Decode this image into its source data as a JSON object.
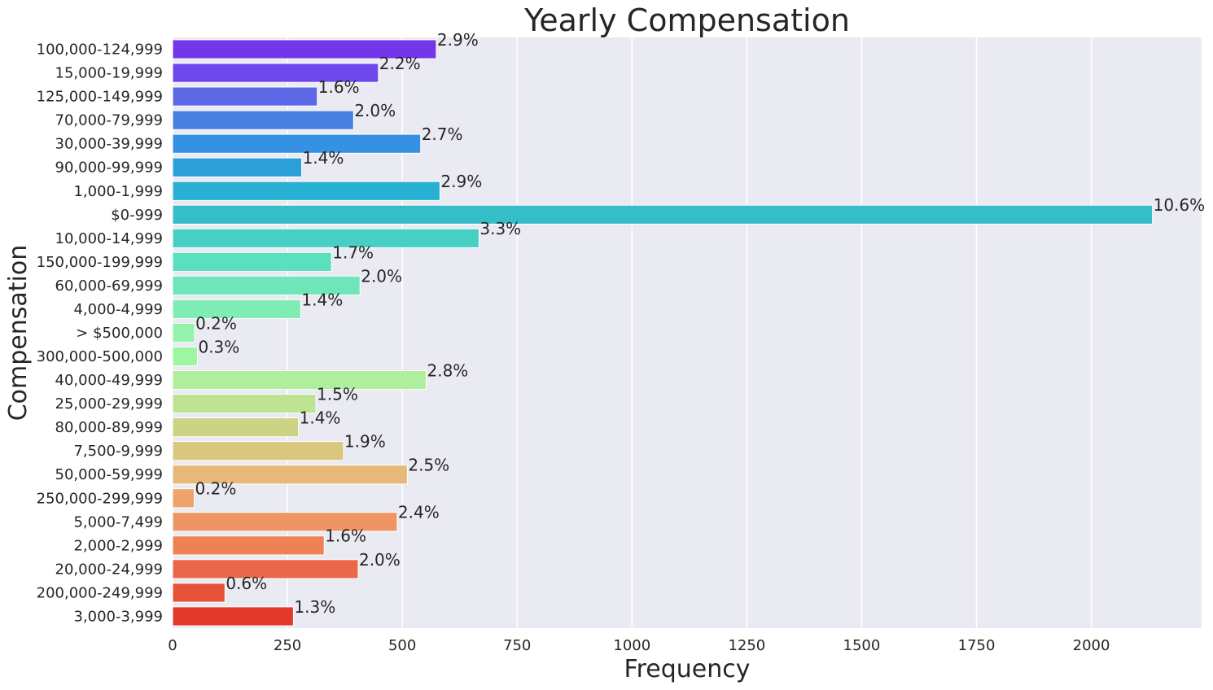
{
  "chart_data": {
    "type": "bar",
    "orientation": "horizontal",
    "title": "Yearly Compensation",
    "xlabel": "Frequency",
    "ylabel": "Compensation",
    "xlim": [
      0,
      2240
    ],
    "xticks": [
      0,
      250,
      500,
      750,
      1000,
      1250,
      1500,
      1750,
      2000
    ],
    "grid": true,
    "categories": [
      "100,000-124,999",
      "15,000-19,999",
      "125,000-149,999",
      "70,000-79,999",
      "30,000-39,999",
      "90,000-99,999",
      "1,000-1,999",
      "$0-999",
      "10,000-14,999",
      "150,000-199,999",
      "60,000-69,999",
      "4,000-4,999",
      "> $500,000",
      "300,000-500,000",
      "40,000-49,999",
      "25,000-29,999",
      "80,000-89,999",
      "7,500-9,999",
      "50,000-59,999",
      "250,000-299,999",
      "5,000-7,499",
      "2,000-2,999",
      "20,000-24,999",
      "200,000-249,999",
      "3,000-3,999"
    ],
    "values": [
      574,
      448,
      315,
      394,
      540,
      281,
      582,
      2133,
      667,
      346,
      408,
      279,
      48,
      54,
      552,
      312,
      274,
      372,
      511,
      47,
      489,
      330,
      404,
      114,
      263
    ],
    "labels": [
      "2.9%",
      "2.2%",
      "1.6%",
      "2.0%",
      "2.7%",
      "1.4%",
      "2.9%",
      "10.6%",
      "3.3%",
      "1.7%",
      "2.0%",
      "1.4%",
      "0.2%",
      "0.3%",
      "2.8%",
      "1.5%",
      "1.4%",
      "1.9%",
      "2.5%",
      "0.2%",
      "2.4%",
      "1.6%",
      "2.0%",
      "0.6%",
      "1.3%"
    ],
    "colors": [
      "#7337ea",
      "#6d47ec",
      "#5c69e6",
      "#4a81e0",
      "#3691e4",
      "#2a9fd8",
      "#27b0d1",
      "#36bec8",
      "#47cfc4",
      "#5adfbf",
      "#6ee6b9",
      "#80edb5",
      "#92f4ab",
      "#9ef6a2",
      "#afee9c",
      "#bfe394",
      "#ccd385",
      "#d9c77e",
      "#e6b87a",
      "#eea36b",
      "#ef9464",
      "#ee8255",
      "#ea6749",
      "#e6533a",
      "#e2392b"
    ],
    "background": "#eaeaf2"
  }
}
